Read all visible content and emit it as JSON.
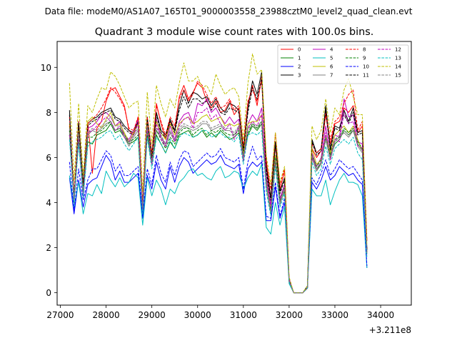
{
  "header": {
    "datafile": "Data file: modeM0/AS1A07_165T01_9000003558_23988cztM0_level2_quad_clean.evt"
  },
  "chart_data": {
    "type": "line",
    "title": "Quadrant 3 module wise count rates with 100.0s bins.",
    "xlabel": "",
    "ylabel": "",
    "x_offset_label": "+3.211e8",
    "xlim": [
      26930,
      34670
    ],
    "ylim": [
      -0.55,
      11.15
    ],
    "xticks": [
      27000,
      28000,
      29000,
      30000,
      31000,
      32000,
      33000,
      34000
    ],
    "xtick_labels": [
      "27000",
      "28000",
      "29000",
      "30000",
      "31000",
      "32000",
      "33000",
      "34000"
    ],
    "yticks": [
      0,
      2,
      4,
      6,
      8,
      10
    ],
    "ytick_labels": [
      "0",
      "2",
      "4",
      "6",
      "8",
      "10"
    ],
    "legend_location": "top-right",
    "x_start": 27200,
    "x_step": 100,
    "series": [
      {
        "name": "0",
        "color": "#ff0000",
        "style": "solid",
        "values": [
          7.4,
          4.2,
          7.2,
          4.7,
          7.6,
          5.3,
          7.3,
          7.6,
          8.5,
          9.0,
          9.1,
          8.7,
          8.3,
          7.2,
          7.0,
          7.8,
          3.9,
          7.4,
          5.9,
          8.4,
          7.5,
          6.8,
          7.6,
          7.2,
          8.7,
          9.2,
          8.6,
          8.9,
          9.3,
          9.1,
          8.5,
          8.2,
          8.5,
          8.0,
          8.1,
          8.5,
          7.9,
          8.2,
          6.3,
          8.4,
          9.2,
          8.3,
          9.6,
          5.9,
          4.2,
          6.5,
          4.6,
          5.4,
          0.6,
          0,
          0,
          0,
          0.2,
          6.4,
          6.0,
          6.3,
          7.9,
          6.6,
          7.5,
          7.6,
          8.2,
          8.0,
          8.3,
          7.1,
          7.4,
          2.3
        ]
      },
      {
        "name": "1",
        "color": "#008000",
        "style": "solid",
        "values": [
          7.0,
          4.1,
          6.8,
          4.4,
          6.7,
          6.6,
          7.0,
          7.1,
          7.2,
          7.5,
          7.1,
          7.2,
          6.9,
          6.6,
          6.7,
          6.9,
          3.6,
          7.0,
          5.7,
          7.0,
          6.6,
          6.2,
          6.7,
          6.4,
          7.0,
          7.1,
          7.2,
          6.9,
          7.0,
          7.2,
          6.9,
          7.1,
          6.9,
          7.2,
          7.0,
          6.8,
          6.9,
          7.1,
          6.0,
          7.0,
          7.4,
          7.2,
          7.5,
          5.0,
          3.5,
          5.8,
          4.0,
          4.5,
          0.5,
          0,
          0,
          0,
          0.2,
          6.0,
          5.4,
          5.8,
          6.8,
          6.0,
          6.6,
          6.8,
          7.2,
          7.0,
          7.2,
          6.6,
          6.3,
          1.8
        ]
      },
      {
        "name": "2",
        "color": "#0000ff",
        "style": "solid",
        "values": [
          5.1,
          3.5,
          5.0,
          3.8,
          4.8,
          5.0,
          5.1,
          5.6,
          6.1,
          5.8,
          5.0,
          5.4,
          4.9,
          4.9,
          5.1,
          5.3,
          3.3,
          5.2,
          4.6,
          5.8,
          5.0,
          4.6,
          5.6,
          4.9,
          5.6,
          6.0,
          5.8,
          5.3,
          5.5,
          5.7,
          5.9,
          5.7,
          5.8,
          6.1,
          5.7,
          5.6,
          5.5,
          5.7,
          4.4,
          5.5,
          5.8,
          5.6,
          5.8,
          3.2,
          3.2,
          4.7,
          3.3,
          4.0,
          0.5,
          0,
          0,
          0,
          0.2,
          4.9,
          4.6,
          5.0,
          5.6,
          5.0,
          5.2,
          5.6,
          5.4,
          5.2,
          5.3,
          5.0,
          4.8,
          1.1
        ]
      },
      {
        "name": "3",
        "color": "#000000",
        "style": "solid",
        "values": [
          8.1,
          4.0,
          7.6,
          4.7,
          7.5,
          7.7,
          7.8,
          8.0,
          8.1,
          8.2,
          7.8,
          7.7,
          7.4,
          7.2,
          7.1,
          7.6,
          3.6,
          7.8,
          6.1,
          8.0,
          7.2,
          7.0,
          7.7,
          7.2,
          8.3,
          9.0,
          8.4,
          8.9,
          8.8,
          8.6,
          8.7,
          8.3,
          8.6,
          8.2,
          8.0,
          8.4,
          8.3,
          8.1,
          6.4,
          8.2,
          9.4,
          8.8,
          9.8,
          5.6,
          4.2,
          6.7,
          4.5,
          5.1,
          0.6,
          0,
          0,
          0,
          0.3,
          6.8,
          6.2,
          6.4,
          8.3,
          6.4,
          7.4,
          7.3,
          8.1,
          7.6,
          8.2,
          7.1,
          7.2,
          1.9
        ]
      },
      {
        "name": "4",
        "color": "#bf00bf",
        "style": "solid",
        "values": [
          7.2,
          4.1,
          7.1,
          4.3,
          7.3,
          7.4,
          7.6,
          7.9,
          8.0,
          7.8,
          7.4,
          7.6,
          7.0,
          6.8,
          7.2,
          7.7,
          3.8,
          7.5,
          5.8,
          7.7,
          6.9,
          6.6,
          7.4,
          6.8,
          7.6,
          7.9,
          8.0,
          7.5,
          8.4,
          8.3,
          8.6,
          8.0,
          8.2,
          7.8,
          7.5,
          7.8,
          7.5,
          7.7,
          5.9,
          7.5,
          7.9,
          7.6,
          8.2,
          5.2,
          3.9,
          6.0,
          4.2,
          4.8,
          0.6,
          0,
          0,
          0,
          0.2,
          6.2,
          5.6,
          6.0,
          7.4,
          6.1,
          7.0,
          6.9,
          8.6,
          7.8,
          7.9,
          6.7,
          6.6,
          1.9
        ]
      },
      {
        "name": "5",
        "color": "#00bfbf",
        "style": "solid",
        "values": [
          5.2,
          3.8,
          4.9,
          3.5,
          4.4,
          4.3,
          4.8,
          4.4,
          5.4,
          5.0,
          4.7,
          5.1,
          4.7,
          4.9,
          5.3,
          5.1,
          3.0,
          5.1,
          4.3,
          5.0,
          4.6,
          3.9,
          4.6,
          4.4,
          4.9,
          5.1,
          5.4,
          5.5,
          5.2,
          5.3,
          5.1,
          5.0,
          5.4,
          5.6,
          5.1,
          5.2,
          5.4,
          5.3,
          4.6,
          5.1,
          5.4,
          5.2,
          5.7,
          2.9,
          2.6,
          4.0,
          3.0,
          3.8,
          0.4,
          0,
          0,
          0,
          0.2,
          4.6,
          4.3,
          4.3,
          5.0,
          3.9,
          4.5,
          5.0,
          5.3,
          4.9,
          4.9,
          4.8,
          4.3,
          1.1
        ]
      },
      {
        "name": "6",
        "color": "#bfbf00",
        "style": "solid",
        "values": [
          7.5,
          4.3,
          7.3,
          4.5,
          7.6,
          7.8,
          7.5,
          7.3,
          7.7,
          8.0,
          7.4,
          7.5,
          7.1,
          6.7,
          7.1,
          7.5,
          3.8,
          7.6,
          6.0,
          7.6,
          7.1,
          6.8,
          7.5,
          7.0,
          7.5,
          7.7,
          7.8,
          7.5,
          7.6,
          7.8,
          7.9,
          7.6,
          7.7,
          7.8,
          7.4,
          7.5,
          7.4,
          7.5,
          6.2,
          7.5,
          7.6,
          7.6,
          7.9,
          4.9,
          3.7,
          6.1,
          4.1,
          4.7,
          0.5,
          0,
          0,
          0,
          0.2,
          6.4,
          5.7,
          5.9,
          7.0,
          6.2,
          7.0,
          7.2,
          7.4,
          7.1,
          7.4,
          6.8,
          6.3,
          1.8
        ]
      },
      {
        "name": "7",
        "color": "#808080",
        "style": "solid",
        "values": [
          7.1,
          4.0,
          7.0,
          4.3,
          7.0,
          7.2,
          7.1,
          7.3,
          7.5,
          7.6,
          7.2,
          7.3,
          6.9,
          6.5,
          6.9,
          7.2,
          3.6,
          7.3,
          5.7,
          7.2,
          6.9,
          6.5,
          7.1,
          6.7,
          7.2,
          7.4,
          7.3,
          7.2,
          7.3,
          7.5,
          7.5,
          7.2,
          7.3,
          7.4,
          7.2,
          7.2,
          7.0,
          7.3,
          5.9,
          7.3,
          7.4,
          7.3,
          7.5,
          4.7,
          3.5,
          5.8,
          3.9,
          4.6,
          0.5,
          0,
          0,
          0,
          0.2,
          6.0,
          5.4,
          5.7,
          6.8,
          5.9,
          6.7,
          6.9,
          7.1,
          6.9,
          7.2,
          6.5,
          6.2,
          1.7
        ]
      },
      {
        "name": "8",
        "color": "#ff0000",
        "style": "dashed",
        "values": [
          7.8,
          4.4,
          7.6,
          4.9,
          7.5,
          7.7,
          7.9,
          8.2,
          8.6,
          9.1,
          8.9,
          8.6,
          8.2,
          7.3,
          7.2,
          7.8,
          4.0,
          7.8,
          6.2,
          8.3,
          7.6,
          7.0,
          7.8,
          7.4,
          8.6,
          9.0,
          8.5,
          8.8,
          9.4,
          9.2,
          8.8,
          8.4,
          8.7,
          8.2,
          8.3,
          8.6,
          8.1,
          8.3,
          6.5,
          8.5,
          9.0,
          8.5,
          9.4,
          5.8,
          4.6,
          7.1,
          4.8,
          5.5,
          0.6,
          0,
          0,
          0,
          0.2,
          6.6,
          6.2,
          6.4,
          8.0,
          6.8,
          7.6,
          7.8,
          8.4,
          8.8,
          9.0,
          7.2,
          7.6,
          2.3
        ]
      },
      {
        "name": "9",
        "color": "#008000",
        "style": "dashed",
        "values": [
          7.2,
          4.3,
          6.9,
          4.6,
          6.9,
          6.9,
          7.1,
          7.2,
          7.4,
          7.6,
          7.2,
          7.3,
          7.0,
          6.7,
          6.8,
          7.0,
          3.7,
          7.1,
          5.8,
          7.2,
          6.8,
          6.4,
          6.9,
          6.6,
          7.1,
          7.3,
          7.3,
          7.0,
          7.2,
          7.3,
          7.0,
          7.2,
          7.1,
          7.3,
          7.1,
          7.0,
          7.0,
          7.2,
          6.1,
          7.1,
          7.5,
          7.3,
          7.6,
          5.1,
          3.7,
          6.0,
          4.1,
          4.7,
          0.5,
          0,
          0,
          0,
          0.2,
          6.1,
          5.6,
          5.9,
          6.9,
          6.1,
          6.8,
          6.9,
          7.3,
          7.1,
          7.3,
          6.7,
          6.4,
          1.9
        ]
      },
      {
        "name": "10",
        "color": "#0000ff",
        "style": "dashed",
        "values": [
          5.8,
          3.6,
          5.5,
          4.1,
          5.0,
          5.5,
          5.5,
          5.9,
          6.3,
          6.1,
          5.4,
          5.7,
          5.2,
          5.2,
          5.4,
          5.6,
          3.4,
          5.5,
          4.8,
          6.1,
          5.3,
          4.9,
          5.8,
          5.2,
          5.9,
          6.3,
          6.2,
          5.6,
          5.8,
          6.0,
          6.2,
          6.0,
          6.1,
          6.4,
          6.0,
          5.9,
          5.8,
          6.0,
          4.6,
          5.8,
          6.5,
          5.9,
          6.1,
          3.4,
          3.3,
          4.9,
          3.4,
          4.2,
          0.5,
          0,
          0,
          0,
          0.2,
          5.1,
          4.8,
          5.3,
          5.9,
          5.2,
          5.5,
          5.9,
          5.7,
          5.5,
          5.6,
          5.3,
          5.0,
          1.2
        ]
      },
      {
        "name": "11",
        "color": "#000000",
        "style": "dashed",
        "values": [
          7.9,
          4.1,
          7.5,
          4.8,
          7.4,
          7.6,
          7.7,
          7.9,
          8.0,
          8.1,
          7.7,
          7.6,
          7.3,
          7.1,
          7.0,
          7.5,
          3.7,
          7.7,
          6.0,
          7.9,
          7.1,
          6.9,
          7.6,
          7.1,
          8.1,
          8.7,
          8.2,
          8.6,
          8.6,
          8.4,
          8.5,
          8.1,
          8.4,
          8.0,
          7.9,
          8.2,
          8.1,
          8.0,
          6.3,
          8.0,
          9.1,
          8.6,
          9.5,
          5.4,
          4.1,
          6.6,
          4.4,
          5.0,
          0.6,
          0,
          0,
          0,
          0.3,
          6.7,
          6.1,
          6.3,
          8.1,
          6.3,
          7.3,
          7.2,
          7.9,
          7.5,
          8.0,
          7.0,
          7.1,
          1.9
        ]
      },
      {
        "name": "12",
        "color": "#bf00bf",
        "style": "dashed",
        "values": [
          7.0,
          4.0,
          6.9,
          4.2,
          7.1,
          7.2,
          7.4,
          7.6,
          7.8,
          7.6,
          7.2,
          7.4,
          6.9,
          6.7,
          7.0,
          7.5,
          3.7,
          7.3,
          5.7,
          7.5,
          6.8,
          6.5,
          7.2,
          6.7,
          7.4,
          7.7,
          7.8,
          7.3,
          8.0,
          8.0,
          8.2,
          7.7,
          7.9,
          7.5,
          7.2,
          7.5,
          6.8,
          7.4,
          5.8,
          7.3,
          7.6,
          7.4,
          7.9,
          5.0,
          3.8,
          5.8,
          4.1,
          4.7,
          0.6,
          0,
          0,
          0,
          0.2,
          6.0,
          5.5,
          5.8,
          7.1,
          5.9,
          6.8,
          6.7,
          8.0,
          7.5,
          7.6,
          6.5,
          6.4,
          1.8
        ]
      },
      {
        "name": "13",
        "color": "#00bfbf",
        "style": "dashed",
        "values": [
          6.8,
          4.0,
          6.6,
          4.2,
          6.5,
          6.7,
          6.8,
          6.9,
          7.1,
          7.2,
          6.8,
          7.0,
          6.6,
          6.3,
          6.6,
          6.9,
          3.5,
          6.9,
          5.5,
          6.9,
          6.6,
          6.2,
          6.8,
          6.4,
          6.9,
          7.1,
          7.0,
          6.9,
          7.0,
          7.2,
          7.2,
          6.9,
          7.0,
          7.1,
          6.9,
          6.9,
          6.7,
          7.0,
          5.7,
          7.0,
          7.1,
          7.0,
          7.2,
          4.5,
          3.4,
          5.6,
          3.8,
          4.4,
          0.5,
          0,
          0,
          0,
          0.2,
          5.8,
          5.2,
          5.5,
          6.5,
          5.7,
          6.4,
          6.6,
          6.8,
          6.6,
          6.9,
          6.2,
          5.9,
          1.6
        ]
      },
      {
        "name": "14",
        "color": "#bfbf00",
        "style": "dashed",
        "values": [
          9.3,
          5.0,
          8.4,
          5.2,
          8.3,
          8.0,
          8.6,
          9.1,
          9.0,
          9.8,
          9.6,
          9.2,
          8.7,
          8.2,
          8.4,
          8.5,
          4.5,
          8.9,
          6.6,
          9.2,
          8.4,
          7.8,
          8.6,
          8.2,
          9.3,
          10.2,
          9.4,
          9.4,
          9.6,
          9.1,
          9.2,
          8.8,
          9.7,
          9.2,
          8.8,
          9.0,
          9.1,
          8.7,
          6.8,
          9.3,
          10.6,
          9.7,
          9.9,
          6.1,
          4.8,
          7.1,
          4.9,
          5.6,
          0.7,
          0,
          0,
          0,
          0.3,
          7.4,
          6.8,
          7.2,
          8.6,
          7.1,
          8.2,
          7.9,
          9.0,
          9.5,
          8.7,
          7.9,
          7.9,
          2.1
        ]
      },
      {
        "name": "15",
        "color": "#808080",
        "style": "dashed",
        "values": [
          7.3,
          4.2,
          7.1,
          4.5,
          7.1,
          7.3,
          7.2,
          7.4,
          7.6,
          7.8,
          7.4,
          7.4,
          7.0,
          6.6,
          7.0,
          7.3,
          3.7,
          7.4,
          5.8,
          7.3,
          7.0,
          6.6,
          7.2,
          6.8,
          7.3,
          7.5,
          7.4,
          7.3,
          7.4,
          7.6,
          7.6,
          7.3,
          7.4,
          7.5,
          7.3,
          7.3,
          7.1,
          7.4,
          6.0,
          7.4,
          7.5,
          7.4,
          7.6,
          4.8,
          3.6,
          5.9,
          4.0,
          4.7,
          0.5,
          0,
          0,
          0,
          0.2,
          6.1,
          5.5,
          5.8,
          6.9,
          6.0,
          6.8,
          7.0,
          7.2,
          7.0,
          7.3,
          6.6,
          6.3,
          1.7
        ]
      }
    ]
  }
}
